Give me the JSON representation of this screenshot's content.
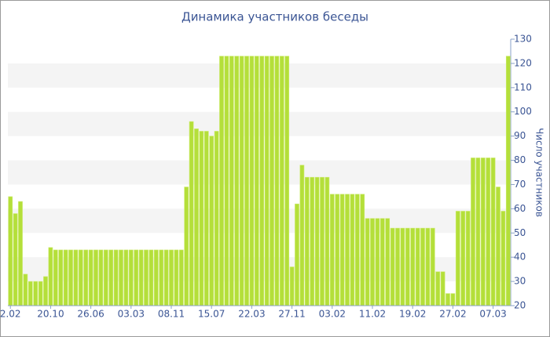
{
  "chart_data": {
    "type": "bar",
    "title": "Динамика участников беседы",
    "y_axis_label": "Число участников",
    "categories": [
      "2.02",
      null,
      null,
      null,
      null,
      null,
      null,
      null,
      "20.10",
      null,
      null,
      null,
      null,
      null,
      null,
      null,
      "26.06",
      null,
      null,
      null,
      null,
      null,
      null,
      null,
      "03.03",
      null,
      null,
      null,
      null,
      null,
      null,
      null,
      "08.11",
      null,
      null,
      null,
      null,
      null,
      null,
      null,
      "15.07",
      null,
      null,
      null,
      null,
      null,
      null,
      null,
      "22.03",
      null,
      null,
      null,
      null,
      null,
      null,
      null,
      "27.11",
      null,
      null,
      null,
      null,
      null,
      null,
      null,
      "03.02",
      null,
      null,
      null,
      null,
      null,
      null,
      null,
      "11.02",
      null,
      null,
      null,
      null,
      null,
      null,
      null,
      "19.02",
      null,
      null,
      null,
      null,
      null,
      null,
      null,
      "27.02",
      null,
      null,
      null,
      null,
      null,
      null,
      null,
      "07.03",
      null,
      null,
      null
    ],
    "values": [
      65,
      58,
      63,
      33,
      30,
      30,
      30,
      32,
      44,
      43,
      43,
      43,
      43,
      43,
      43,
      43,
      43,
      43,
      43,
      43,
      43,
      43,
      43,
      43,
      43,
      43,
      43,
      43,
      43,
      43,
      43,
      43,
      43,
      43,
      43,
      69,
      96,
      93,
      92,
      92,
      90,
      92,
      123,
      123,
      123,
      123,
      123,
      123,
      123,
      123,
      123,
      123,
      123,
      123,
      123,
      123,
      36,
      62,
      78,
      73,
      73,
      73,
      73,
      73,
      66,
      66,
      66,
      66,
      66,
      66,
      66,
      56,
      56,
      56,
      56,
      56,
      52,
      52,
      52,
      52,
      52,
      52,
      52,
      52,
      52,
      34,
      34,
      25,
      25,
      59,
      59,
      59,
      81,
      81,
      81,
      81,
      81,
      69,
      59,
      123
    ],
    "color": "#b4df3a",
    "ylim": [
      20,
      130
    ],
    "yticks": [
      20,
      30,
      40,
      50,
      60,
      70,
      80,
      90,
      100,
      110,
      120,
      130
    ],
    "grid": "bands",
    "y_axis_side": "right"
  }
}
